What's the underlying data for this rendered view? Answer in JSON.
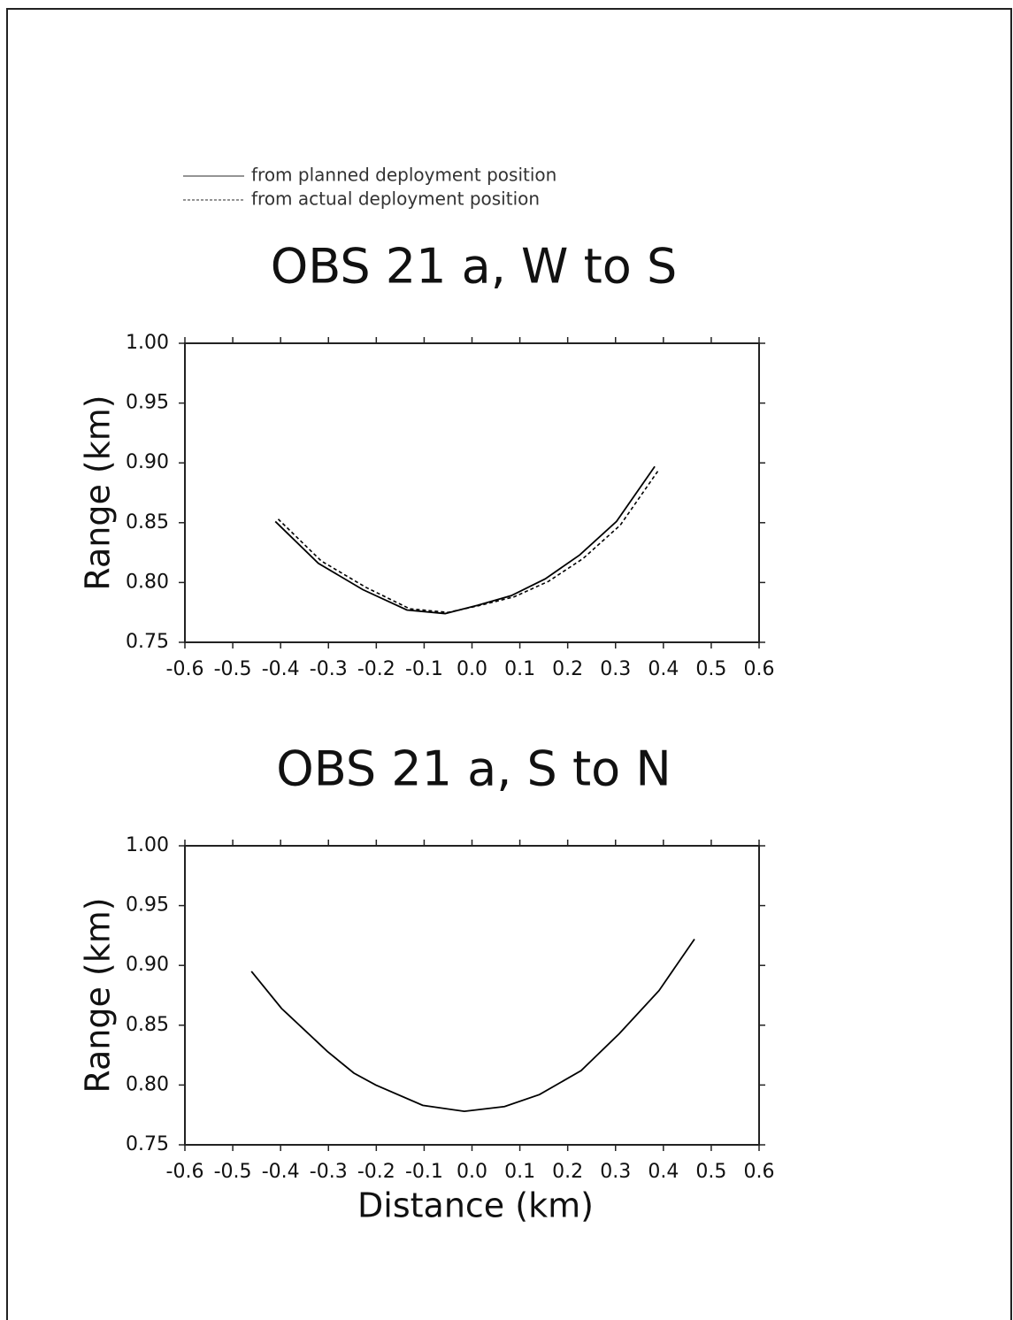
{
  "chart_data": [
    {
      "type": "line",
      "title": "OBS 21 a, W to S",
      "ylabel": "Range (km)",
      "legend": "top-left",
      "series": [
        {
          "name": "from planned deployment position",
          "color": "#000000",
          "linestyle": "solid",
          "x": [
            -0.411,
            -0.321,
            -0.228,
            -0.136,
            -0.056,
            0.012,
            0.082,
            0.153,
            0.225,
            0.302,
            0.382
          ],
          "values": [
            0.851,
            0.816,
            0.794,
            0.777,
            0.774,
            0.781,
            0.789,
            0.803,
            0.823,
            0.851,
            0.897
          ]
        },
        {
          "name": "from actual deployment position",
          "color": "#000000",
          "linestyle": "dashed",
          "x": [
            -0.405,
            -0.315,
            -0.222,
            -0.13,
            -0.05,
            0.018,
            0.088,
            0.16,
            0.232,
            0.31,
            0.39
          ],
          "values": [
            0.853,
            0.818,
            0.796,
            0.778,
            0.775,
            0.781,
            0.788,
            0.801,
            0.82,
            0.848,
            0.894
          ]
        }
      ],
      "xlim": [
        -0.6,
        0.6
      ],
      "xticks": [
        -0.6,
        -0.5,
        -0.4,
        -0.3,
        -0.2,
        -0.1,
        {
          "value": 0,
          "label": "0.0"
        },
        0.1,
        0.2,
        0.3,
        0.4,
        0.5,
        0.6
      ],
      "ylim": [
        0.75,
        1.0
      ],
      "yticks": [
        0.75,
        {
          "value": 0.8,
          "label": "0.80"
        },
        0.85,
        {
          "value": 0.9,
          "label": "0.90"
        },
        0.95,
        {
          "value": 1,
          "label": "1.00"
        }
      ]
    },
    {
      "type": "line",
      "title": "OBS 21 a, S to N",
      "ylabel": "Range (km)",
      "xlabel": "Distance (km)",
      "series": [
        {
          "color": "#000000",
          "linestyle": "solid",
          "x": [
            -0.461,
            -0.398,
            -0.302,
            -0.247,
            -0.201,
            -0.103,
            -0.016,
            0.068,
            0.141,
            0.228,
            0.308,
            0.391,
            0.465
          ],
          "values": [
            0.895,
            0.864,
            0.828,
            0.81,
            0.8,
            0.783,
            0.778,
            0.782,
            0.792,
            0.812,
            0.843,
            0.879,
            0.922
          ]
        }
      ],
      "xlim": [
        -0.6,
        0.6
      ],
      "xticks": [
        -0.6,
        -0.5,
        -0.4,
        -0.3,
        -0.2,
        -0.1,
        {
          "value": 0,
          "label": "0.0"
        },
        0.1,
        0.2,
        0.3,
        0.4,
        0.5,
        0.6
      ],
      "ylim": [
        0.75,
        1.0
      ],
      "yticks": [
        0.75,
        {
          "value": 0.8,
          "label": "0.80"
        },
        0.85,
        {
          "value": 0.9,
          "label": "0.90"
        },
        0.95,
        {
          "value": 1,
          "label": "1.00"
        }
      ]
    }
  ]
}
